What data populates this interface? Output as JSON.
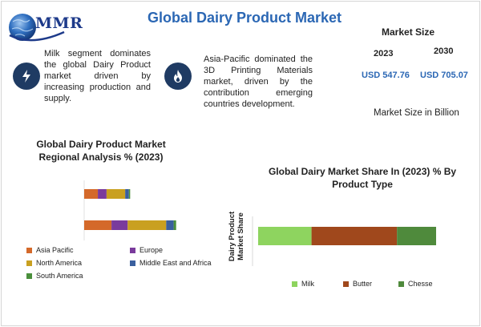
{
  "brand": {
    "logo_text": "MMR"
  },
  "header": {
    "title": "Global Dairy Product Market"
  },
  "highlights": [
    {
      "icon": "lightning-bolt-icon",
      "text": "Milk segment dominates the global Dairy Product market driven by increasing production and supply."
    },
    {
      "icon": "flame-icon",
      "text": "Asia-Pacific dominated the 3D Printing Materials market, driven by the contribution emerging countries development."
    }
  ],
  "market_size": {
    "heading": "Market Size",
    "year_1": "2023",
    "year_2": "2030",
    "value_1": "USD 547.76",
    "value_2": "USD 705.07",
    "unit_label": "Market Size in Billion"
  },
  "colors": {
    "title_blue": "#2b67b4",
    "icon_navy": "#1f3b63",
    "asia_pacific": "#d4692a",
    "europe": "#7a3b9c",
    "north_america": "#c9a020",
    "middle_east_africa": "#3a5f9e",
    "south_america": "#4a8f3c",
    "milk": "#8ed45f",
    "butter": "#a0481c",
    "cheese": "#4f8a3c"
  },
  "chart_data": [
    {
      "type": "bar",
      "orientation": "horizontal",
      "stacked": true,
      "title": "Global Dairy Product Market\nRegional Analysis % (2023)",
      "categories": [
        "",
        ""
      ],
      "series": [
        {
          "name": "Asia Pacific",
          "values": [
            11,
            22
          ]
        },
        {
          "name": "Europe",
          "values": [
            7,
            13
          ]
        },
        {
          "name": "North America",
          "values": [
            15,
            31
          ]
        },
        {
          "name": "Middle East and Africa",
          "values": [
            3,
            6
          ]
        },
        {
          "name": "South America",
          "values": [
            1,
            2
          ]
        }
      ],
      "xlabel": "",
      "ylabel": "",
      "legend_position": "bottom",
      "grid": false
    },
    {
      "type": "bar",
      "orientation": "horizontal",
      "stacked": true,
      "title": "Global Dairy Market Share In (2023) % By\nProduct Type",
      "categories": [
        ""
      ],
      "series": [
        {
          "name": "Milk",
          "values": [
            30
          ]
        },
        {
          "name": "Butter",
          "values": [
            48
          ]
        },
        {
          "name": "Chesse",
          "values": [
            22
          ]
        }
      ],
      "xlabel": "",
      "ylabel": "Dairy Product\nMarket Share",
      "legend_position": "bottom",
      "grid": false
    }
  ]
}
